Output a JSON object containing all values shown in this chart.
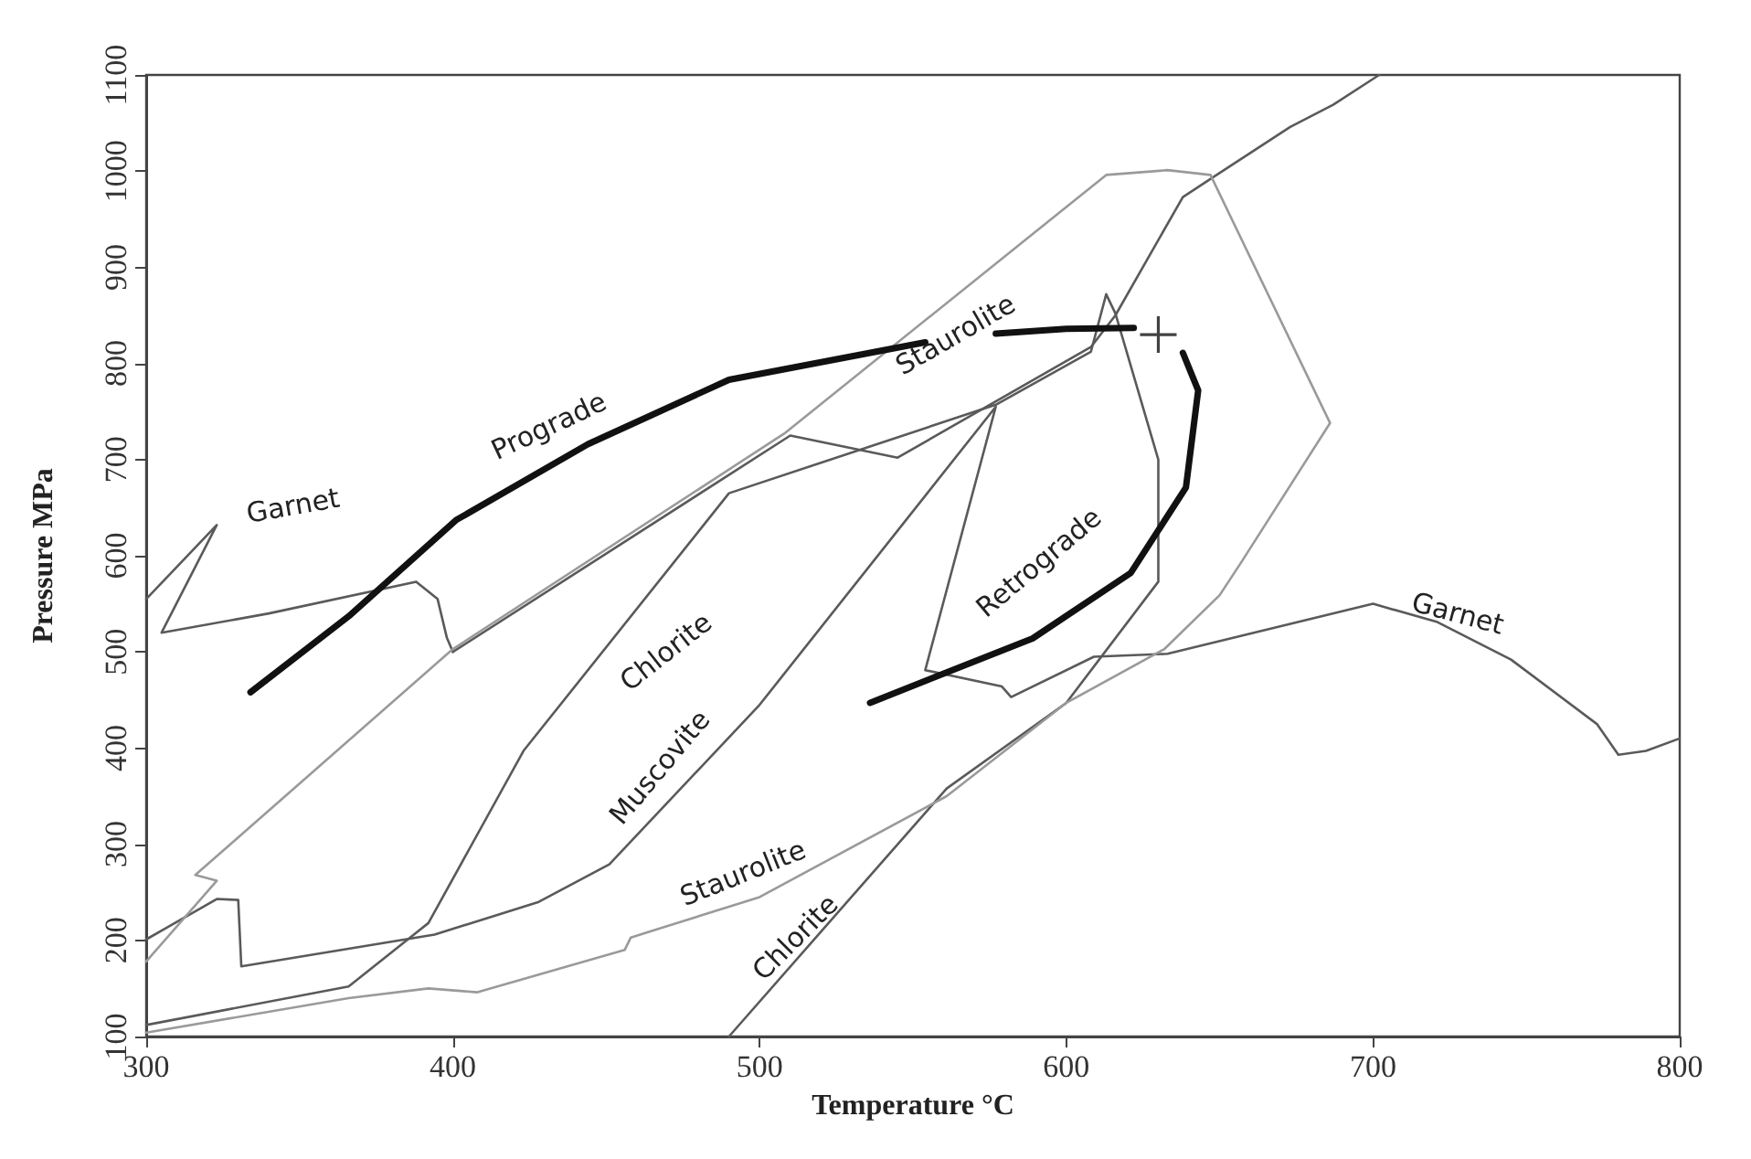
{
  "chart_data": {
    "type": "line",
    "xlabel": "Temperature °C",
    "ylabel": "Pressure MPa",
    "xlim": [
      300,
      800
    ],
    "ylim": [
      100,
      1100
    ],
    "xticks": [
      300,
      400,
      500,
      600,
      700,
      800
    ],
    "yticks": [
      100,
      200,
      300,
      400,
      500,
      600,
      700,
      800,
      900,
      1000,
      1100
    ],
    "grid": false,
    "marker": "none",
    "line_style": "solid",
    "series": [
      {
        "color": "#5a5a5a",
        "x": [
          300,
          323,
          305,
          340,
          388,
          395,
          398,
          400
        ],
        "values": [
          555,
          632,
          520,
          540,
          573,
          555,
          515,
          500
        ]
      },
      {
        "color": "#5a5a5a",
        "x": [
          300,
          323,
          330,
          331,
          394,
          428,
          451,
          500,
          577,
          554,
          579,
          582,
          609,
          633,
          700,
          721,
          745,
          773,
          780,
          789,
          800
        ],
        "values": [
          201,
          243,
          242,
          173,
          206,
          240,
          279,
          445,
          755,
          481,
          464,
          453,
          495,
          498,
          550,
          531,
          492,
          425,
          393,
          397,
          410
        ]
      },
      {
        "color": "#5a5a5a",
        "x": [
          300,
          366,
          392,
          423,
          490,
          577,
          608,
          613,
          616,
          630,
          630,
          600,
          561,
          490
        ],
        "values": [
          112,
          152,
          218,
          397,
          665,
          757,
          812,
          872,
          852,
          700,
          573,
          447,
          358,
          100
        ]
      },
      {
        "color": "#5a5a5a",
        "x": [
          400,
          510,
          545,
          608,
          616,
          638,
          649,
          673,
          687,
          702
        ],
        "values": [
          500,
          725,
          702,
          817,
          850,
          973,
          996,
          1046,
          1069,
          1100
        ]
      },
      {
        "color": "#9a9a9a",
        "x": [
          300,
          366,
          392,
          408,
          456,
          458,
          500,
          561,
          600,
          632,
          650,
          657,
          686,
          647,
          633,
          613,
          508,
          400,
          316,
          323,
          300
        ],
        "values": [
          104,
          140,
          150,
          146,
          190,
          203,
          245,
          350,
          447,
          503,
          559,
          593,
          738,
          996,
          1001,
          996,
          727,
          503,
          268,
          262,
          178
        ]
      },
      {
        "color": "#111111",
        "x": [
          334,
          366,
          401,
          444,
          490,
          554
        ],
        "values": [
          458,
          537,
          637,
          716,
          783,
          822
        ]
      },
      {
        "color": "#111111",
        "x": [
          577,
          600,
          622
        ],
        "values": [
          831,
          836,
          837
        ]
      },
      {
        "color": "#111111",
        "x": [
          638,
          643,
          639,
          621,
          589,
          536
        ],
        "values": [
          811,
          772,
          671,
          582,
          514,
          447
        ]
      },
      {
        "type": "scatter",
        "marker": "cross",
        "color": "#111111",
        "x": [
          630
        ],
        "values": [
          830
        ]
      }
    ],
    "annotations": [
      "Garnet",
      "Prograde",
      "Staurolite",
      "Chlorite",
      "Muscovite",
      "Retrograde",
      "Staurolite",
      "Chlorite",
      "Garnet"
    ]
  }
}
